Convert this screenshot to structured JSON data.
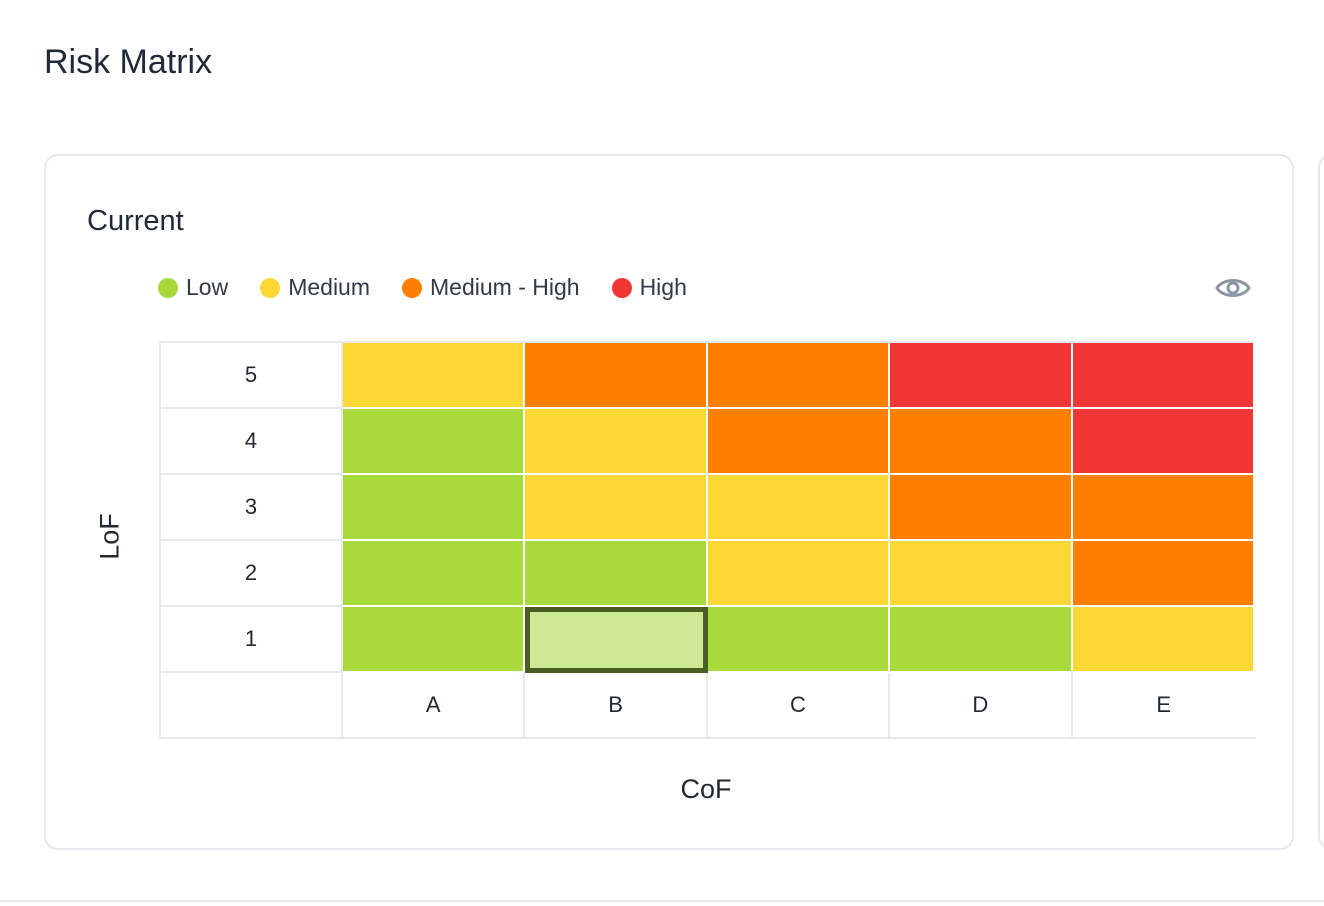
{
  "page": {
    "title": "Risk Matrix"
  },
  "card": {
    "title": "Current"
  },
  "colors": {
    "low": "#a8da3c",
    "medium": "#fdd835",
    "medium_high": "#ff7f00",
    "high": "#f23535",
    "selected_low": "#cde993",
    "selected_border": "#4a5d23"
  },
  "legend": [
    {
      "label": "Low",
      "color": "#a8da3c"
    },
    {
      "label": "Medium",
      "color": "#fdd835"
    },
    {
      "label": "Medium - High",
      "color": "#ff7f00"
    },
    {
      "label": "High",
      "color": "#f23535"
    }
  ],
  "icons": {
    "visibility": "eye-icon"
  },
  "matrix": {
    "y_axis_label": "LoF",
    "x_axis_label": "CoF",
    "columns": [
      "A",
      "B",
      "C",
      "D",
      "E"
    ],
    "rows": [
      {
        "label": "5",
        "levels": [
          "medium",
          "medium_high",
          "medium_high",
          "high",
          "high"
        ]
      },
      {
        "label": "4",
        "levels": [
          "low",
          "medium",
          "medium_high",
          "medium_high",
          "high"
        ]
      },
      {
        "label": "3",
        "levels": [
          "low",
          "medium",
          "medium",
          "medium_high",
          "medium_high"
        ]
      },
      {
        "label": "2",
        "levels": [
          "low",
          "low",
          "medium",
          "medium",
          "medium_high"
        ]
      },
      {
        "label": "1",
        "levels": [
          "low",
          "low",
          "low",
          "low",
          "medium"
        ]
      }
    ],
    "selected": {
      "row": "1",
      "column": "B"
    }
  }
}
